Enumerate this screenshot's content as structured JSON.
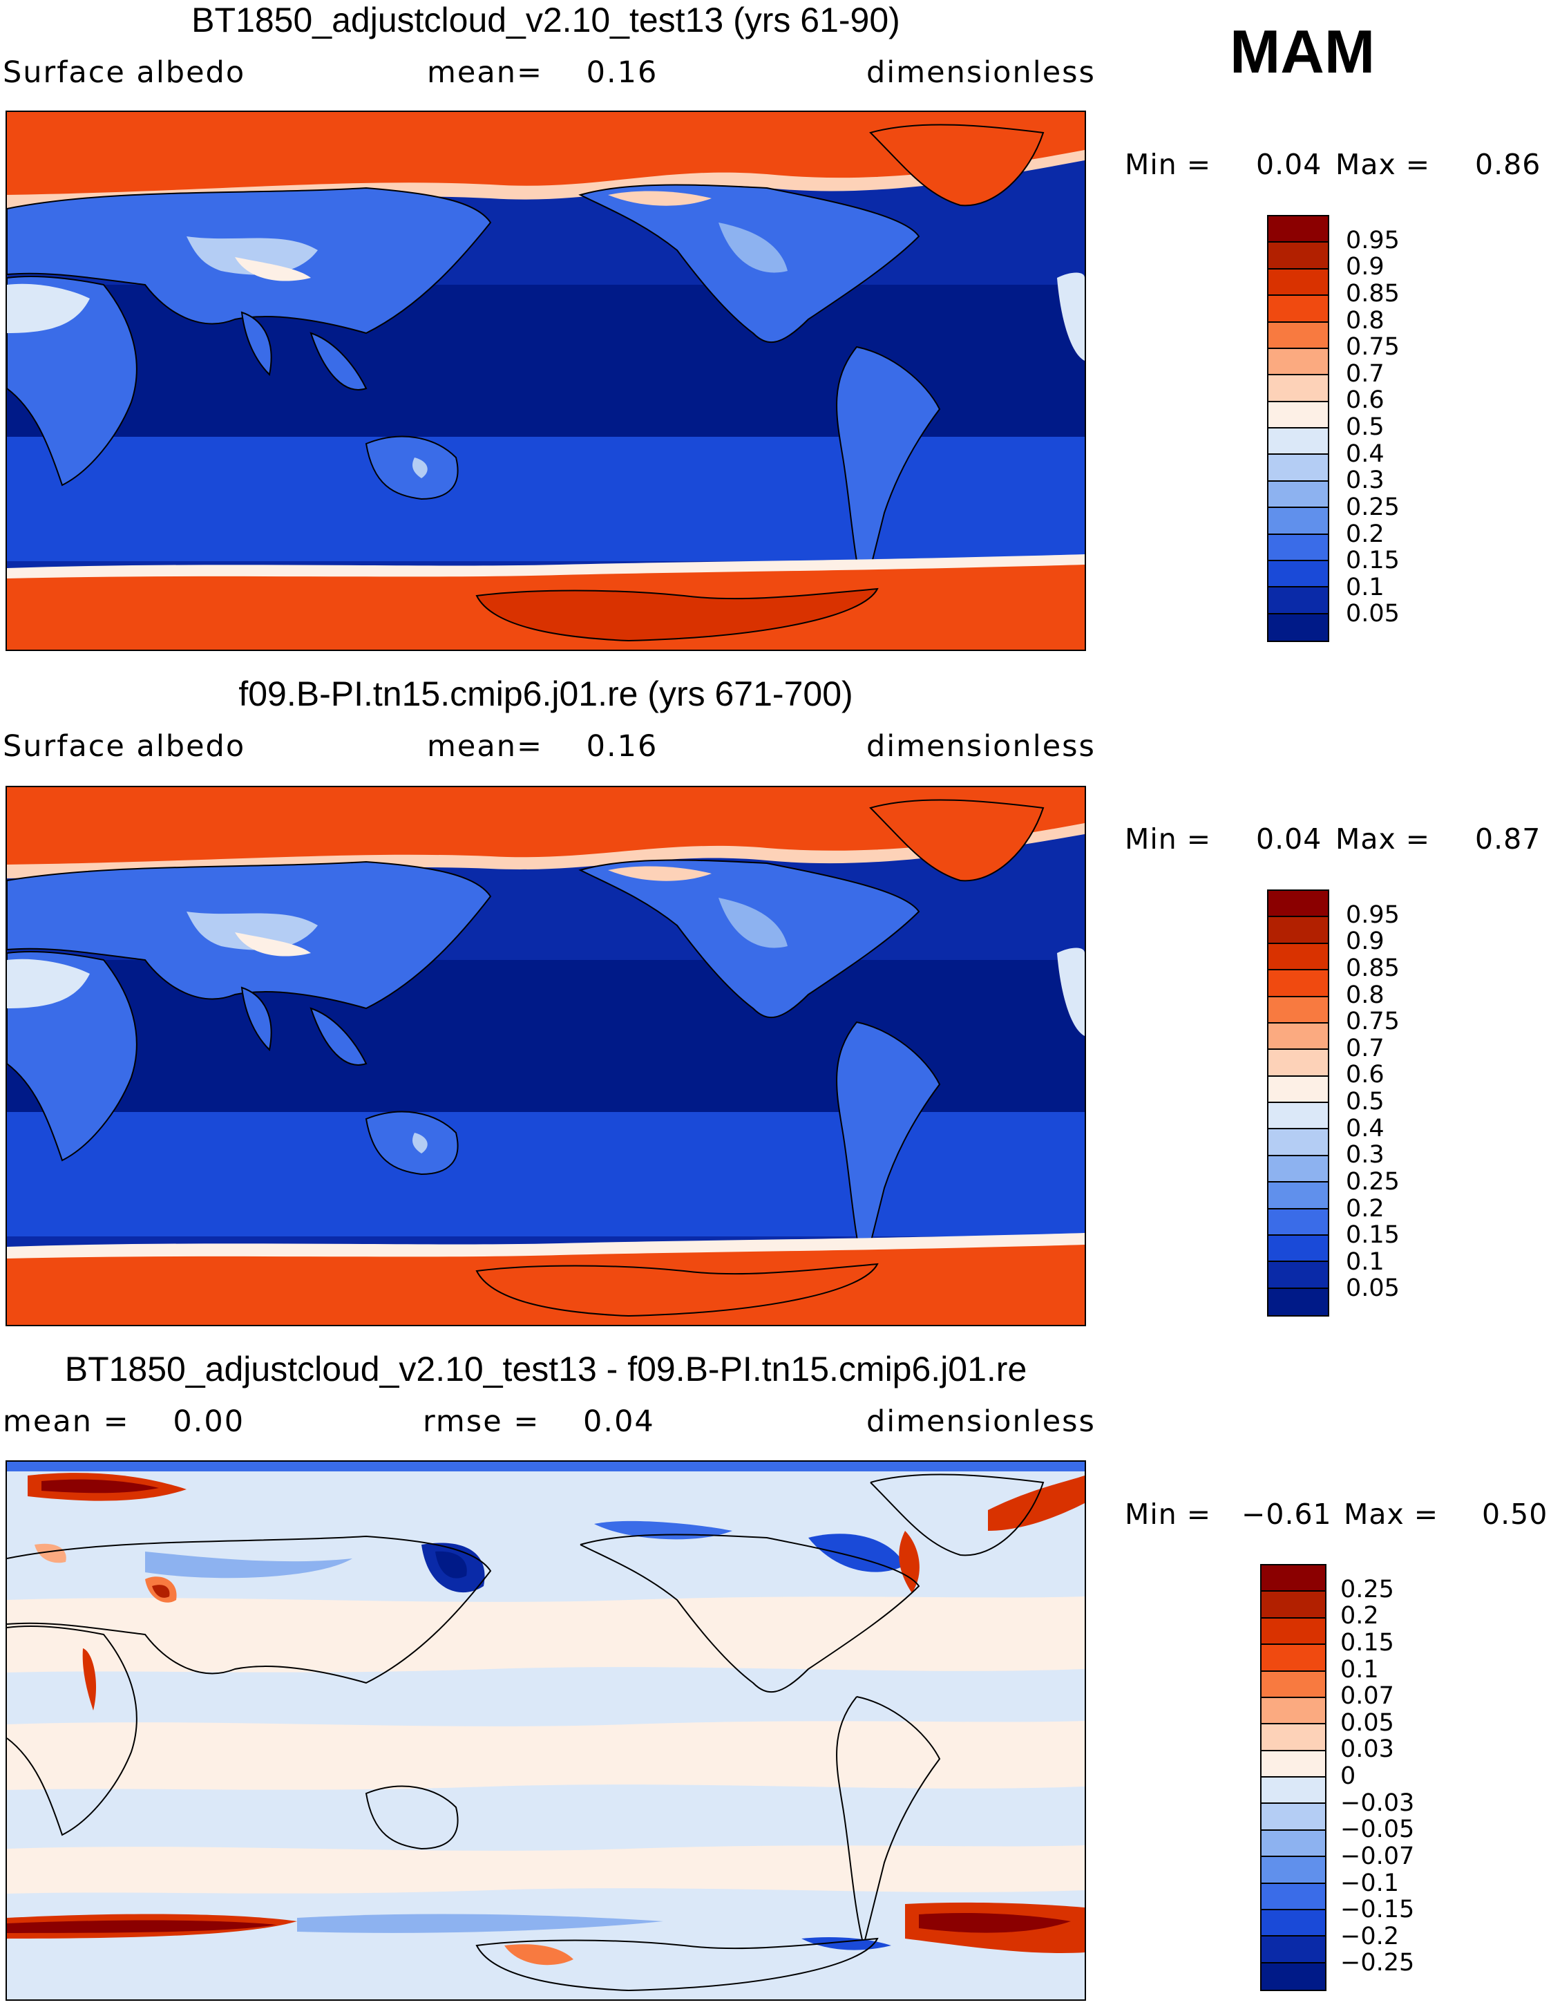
{
  "season": "MAM",
  "panels": [
    {
      "title": "BT1850_adjustcloud_v2.10_test13 (yrs 61-90)",
      "left": "Surface albedo",
      "middle": "mean=    0.16",
      "right": "dimensionless",
      "min_label": "Min =",
      "min_value": "0.04",
      "max_label": "Max =",
      "max_value": "0.86",
      "type": "absolute"
    },
    {
      "title": "f09.B-PI.tn15.cmip6.j01.re (yrs 671-700)",
      "left": "Surface albedo",
      "middle": "mean=    0.16",
      "right": "dimensionless",
      "min_label": "Min =",
      "min_value": "0.04",
      "max_label": "Max =",
      "max_value": "0.87",
      "type": "absolute"
    },
    {
      "title": "BT1850_adjustcloud_v2.10_test13 - f09.B-PI.tn15.cmip6.j01.re",
      "left": "mean =    0.00",
      "middle": "rmse =    0.04",
      "right": "dimensionless",
      "min_label": "Min =",
      "min_value": "−0.61",
      "max_label": "Max =",
      "max_value": "0.50",
      "type": "difference"
    }
  ],
  "colorbars": {
    "absolute": {
      "labels": [
        "0.95",
        "0.9",
        "0.85",
        "0.8",
        "0.75",
        "0.7",
        "0.6",
        "0.5",
        "0.4",
        "0.3",
        "0.25",
        "0.2",
        "0.15",
        "0.1",
        "0.05"
      ],
      "colors": [
        "#8b0000",
        "#b22000",
        "#d93200",
        "#f04a10",
        "#f87a40",
        "#fbaa80",
        "#fdd2b8",
        "#fdf0e6",
        "#dbe8f8",
        "#b4cdf4",
        "#8db2f0",
        "#6090ec",
        "#3a6ce8",
        "#1a4ad8",
        "#0a2aa8",
        "#001a88"
      ]
    },
    "difference": {
      "labels": [
        "0.25",
        "0.2",
        "0.15",
        "0.1",
        "0.07",
        "0.05",
        "0.03",
        "0",
        "−0.03",
        "−0.05",
        "−0.07",
        "−0.1",
        "−0.15",
        "−0.2",
        "−0.25"
      ],
      "colors": [
        "#8b0000",
        "#b22000",
        "#d93200",
        "#f04a10",
        "#f87a40",
        "#fbaa80",
        "#fdd2b8",
        "#fdf0e6",
        "#dbe8f8",
        "#b4cdf4",
        "#8db2f0",
        "#6090ec",
        "#3a6ce8",
        "#1a4ad8",
        "#0a2aa8",
        "#001a88"
      ]
    }
  }
}
